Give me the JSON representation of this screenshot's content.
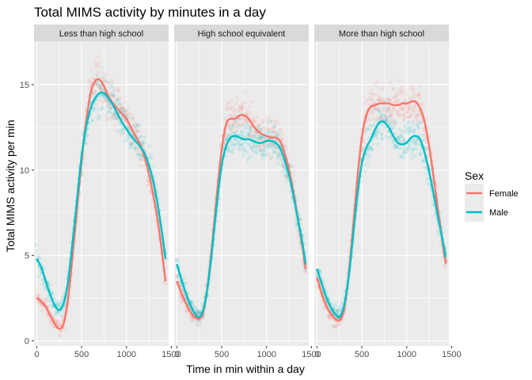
{
  "chart_data": {
    "type": "scatter",
    "title": "Total MIMS activity by minutes in a day",
    "xlabel": "Time in min within a day",
    "ylabel": "Total MIMS activity per min",
    "xlim": [
      -30,
      1470
    ],
    "ylim": [
      -0.3,
      17.5
    ],
    "x_ticks": [
      0,
      500,
      1000,
      1500
    ],
    "x_tick_labels": [
      "0",
      "500",
      "1000",
      "1500"
    ],
    "y_ticks": [
      0,
      5,
      10,
      15
    ],
    "y_tick_labels": [
      "0",
      "5",
      "10",
      "15"
    ],
    "grid": true,
    "legend": {
      "title": "Sex",
      "position": "right"
    },
    "colors": {
      "Female": "#F8766D",
      "Male": "#00BFC4"
    },
    "smoothing": "loess",
    "panels": [
      {
        "label": "Less than high school",
        "series": [
          {
            "name": "Female",
            "x": [
              0,
              50,
              100,
              150,
              200,
              250,
              300,
              350,
              400,
              450,
              500,
              550,
              600,
              650,
              700,
              750,
              800,
              850,
              900,
              950,
              1000,
              1050,
              1100,
              1150,
              1200,
              1250,
              1300,
              1350,
              1400,
              1435
            ],
            "y": [
              2.5,
              2.3,
              2.0,
              1.5,
              1.0,
              0.7,
              1.0,
              2.5,
              5.0,
              7.8,
              10.5,
              12.8,
              14.5,
              15.2,
              15.3,
              14.9,
              14.3,
              13.9,
              13.6,
              13.3,
              13.0,
              12.5,
              12.0,
              11.5,
              10.8,
              9.8,
              8.5,
              7.0,
              5.0,
              3.5
            ]
          },
          {
            "name": "Male",
            "x": [
              0,
              50,
              100,
              150,
              200,
              250,
              300,
              350,
              400,
              450,
              500,
              550,
              600,
              650,
              700,
              750,
              800,
              850,
              900,
              950,
              1000,
              1050,
              1100,
              1150,
              1200,
              1250,
              1300,
              1350,
              1400,
              1435
            ],
            "y": [
              4.8,
              4.3,
              3.5,
              2.7,
              2.1,
              1.8,
              2.2,
              3.5,
              5.8,
              8.3,
              10.8,
              12.5,
              13.6,
              14.2,
              14.5,
              14.5,
              14.2,
              13.8,
              13.3,
              12.8,
              12.4,
              12.0,
              11.7,
              11.4,
              11.0,
              10.3,
              9.3,
              7.9,
              6.2,
              4.8
            ]
          }
        ]
      },
      {
        "label": "High school equivalent",
        "series": [
          {
            "name": "Female",
            "x": [
              0,
              50,
              100,
              150,
              200,
              250,
              300,
              350,
              400,
              450,
              500,
              550,
              600,
              650,
              700,
              750,
              800,
              850,
              900,
              950,
              1000,
              1050,
              1100,
              1150,
              1200,
              1250,
              1300,
              1350,
              1400,
              1435
            ],
            "y": [
              3.5,
              2.8,
              2.2,
              1.7,
              1.4,
              1.3,
              1.8,
              3.5,
              6.0,
              8.8,
              11.2,
              12.7,
              13.0,
              13.0,
              13.2,
              13.2,
              13.0,
              12.6,
              12.3,
              12.1,
              12.0,
              11.9,
              11.9,
              11.7,
              11.0,
              10.0,
              8.7,
              7.1,
              5.5,
              4.2
            ]
          },
          {
            "name": "Male",
            "x": [
              0,
              50,
              100,
              150,
              200,
              250,
              300,
              350,
              400,
              450,
              500,
              550,
              600,
              650,
              700,
              750,
              800,
              850,
              900,
              950,
              1000,
              1050,
              1100,
              1150,
              1200,
              1250,
              1300,
              1350,
              1400,
              1435
            ],
            "y": [
              4.5,
              3.6,
              2.8,
              2.1,
              1.6,
              1.4,
              1.9,
              3.4,
              5.7,
              8.2,
              10.3,
              11.4,
              11.9,
              12.0,
              11.9,
              11.8,
              11.8,
              11.7,
              11.6,
              11.6,
              11.7,
              11.7,
              11.6,
              11.3,
              10.6,
              9.7,
              8.5,
              7.1,
              5.7,
              4.5
            ]
          }
        ]
      },
      {
        "label": "More than high school",
        "series": [
          {
            "name": "Female",
            "x": [
              0,
              50,
              100,
              150,
              200,
              250,
              300,
              350,
              400,
              450,
              500,
              550,
              600,
              650,
              700,
              750,
              800,
              850,
              900,
              950,
              1000,
              1050,
              1100,
              1150,
              1200,
              1250,
              1300,
              1350,
              1400,
              1435
            ],
            "y": [
              3.7,
              2.8,
              2.1,
              1.6,
              1.3,
              1.2,
              1.8,
              3.7,
              6.5,
              9.5,
              11.9,
              13.2,
              13.7,
              13.8,
              13.9,
              13.9,
              13.9,
              13.8,
              13.8,
              13.9,
              13.9,
              14.0,
              14.0,
              13.6,
              12.8,
              11.4,
              9.6,
              7.6,
              5.8,
              4.5
            ]
          },
          {
            "name": "Male",
            "x": [
              0,
              50,
              100,
              150,
              200,
              250,
              300,
              350,
              400,
              450,
              500,
              550,
              600,
              650,
              700,
              750,
              800,
              850,
              900,
              950,
              1000,
              1050,
              1100,
              1150,
              1200,
              1250,
              1300,
              1350,
              1400,
              1435
            ],
            "y": [
              4.2,
              3.4,
              2.6,
              2.0,
              1.6,
              1.4,
              2.0,
              3.6,
              6.0,
              8.5,
              10.4,
              11.3,
              11.8,
              12.4,
              12.8,
              12.8,
              12.5,
              12.0,
              11.6,
              11.5,
              11.6,
              11.9,
              12.0,
              11.8,
              11.0,
              9.9,
              8.6,
              7.2,
              5.9,
              4.9
            ]
          }
        ]
      }
    ]
  }
}
